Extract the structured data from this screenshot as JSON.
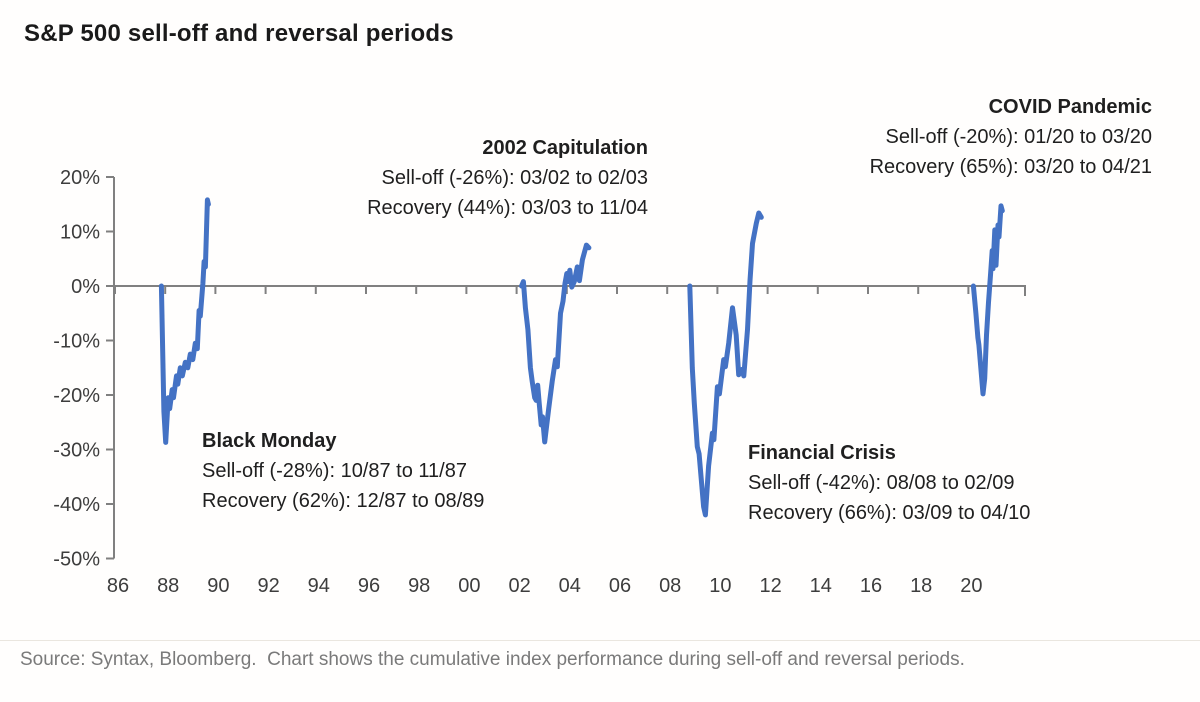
{
  "title": "S&P 500 sell-off and reversal periods",
  "source_note": "Source: Syntax, Bloomberg.  Chart shows the cumulative index performance during sell-off and reversal periods.",
  "colors": {
    "line_blue": "#4472C4",
    "axis_gray": "#808080",
    "text_dark": "#1f1f1f",
    "label_gray": "#3d3d3d",
    "footer_gray": "#7a7a7a"
  },
  "chart_data": {
    "type": "line",
    "title": "S&P 500 sell-off and reversal periods",
    "xlabel": "",
    "ylabel": "",
    "grid": false,
    "legend": "none",
    "ylim": [
      -50,
      20
    ],
    "xlim": [
      1986,
      2022.5
    ],
    "y_ticks": [
      {
        "label": "20%",
        "value": 20
      },
      {
        "label": "10%",
        "value": 10
      },
      {
        "label": "0%",
        "value": 0
      },
      {
        "label": "-10%",
        "value": -10
      },
      {
        "label": "-20%",
        "value": -20
      },
      {
        "label": "-30%",
        "value": -30
      },
      {
        "label": "-40%",
        "value": -40
      },
      {
        "label": "-50%",
        "value": -50
      }
    ],
    "x_ticks": [
      {
        "label": "86",
        "year": 1986
      },
      {
        "label": "88",
        "year": 1988
      },
      {
        "label": "90",
        "year": 1990
      },
      {
        "label": "92",
        "year": 1992
      },
      {
        "label": "94",
        "year": 1994
      },
      {
        "label": "96",
        "year": 1996
      },
      {
        "label": "98",
        "year": 1998
      },
      {
        "label": "00",
        "year": 2000
      },
      {
        "label": "02",
        "year": 2002
      },
      {
        "label": "04",
        "year": 2004
      },
      {
        "label": "06",
        "year": 2006
      },
      {
        "label": "08",
        "year": 2008
      },
      {
        "label": "10",
        "year": 2010
      },
      {
        "label": "12",
        "year": 2012
      },
      {
        "label": "14",
        "year": 2014
      },
      {
        "label": "16",
        "year": 2016
      },
      {
        "label": "18",
        "year": 2018
      },
      {
        "label": "20",
        "year": 2020
      }
    ],
    "episodes": [
      {
        "name": "Black Monday",
        "sell_off": "Sell-off (-28%): 10/87 to 11/87",
        "recovery": "Recovery (62%): 12/87 to 08/89",
        "sell_off_pct": -28,
        "recovery_pct": 62,
        "points": [
          [
            1987.85,
            0
          ],
          [
            1987.9,
            -12
          ],
          [
            1987.95,
            -23
          ],
          [
            1988.02,
            -28.7
          ],
          [
            1988.12,
            -20.5
          ],
          [
            1988.18,
            -22.5
          ],
          [
            1988.28,
            -19
          ],
          [
            1988.33,
            -20.5
          ],
          [
            1988.45,
            -16.5
          ],
          [
            1988.5,
            -18
          ],
          [
            1988.6,
            -15
          ],
          [
            1988.68,
            -16.5
          ],
          [
            1988.8,
            -14
          ],
          [
            1988.9,
            -15
          ],
          [
            1989.0,
            -12.5
          ],
          [
            1989.1,
            -13.5
          ],
          [
            1989.2,
            -10.5
          ],
          [
            1989.28,
            -11.5
          ],
          [
            1989.35,
            -4.5
          ],
          [
            1989.4,
            -5.5
          ],
          [
            1989.5,
            0.5
          ],
          [
            1989.55,
            4.5
          ],
          [
            1989.6,
            3.5
          ],
          [
            1989.68,
            15.8
          ],
          [
            1989.72,
            15.0
          ]
        ]
      },
      {
        "name": "2002 Capitulation",
        "sell_off": "Sell-off (-26%): 03/02 to 02/03",
        "recovery": "Recovery (44%): 03/03 to 11/04",
        "sell_off_pct": -26,
        "recovery_pct": 44,
        "points": [
          [
            2002.2,
            0
          ],
          [
            2002.27,
            0.8
          ],
          [
            2002.35,
            -4
          ],
          [
            2002.45,
            -8
          ],
          [
            2002.55,
            -15
          ],
          [
            2002.62,
            -17.5
          ],
          [
            2002.72,
            -20.5
          ],
          [
            2002.78,
            -21
          ],
          [
            2002.84,
            -18.2
          ],
          [
            2002.9,
            -21.5
          ],
          [
            2002.98,
            -25.5
          ],
          [
            2003.03,
            -24
          ],
          [
            2003.12,
            -28.6
          ],
          [
            2003.28,
            -22.5
          ],
          [
            2003.42,
            -17.5
          ],
          [
            2003.55,
            -13.5
          ],
          [
            2003.62,
            -14.8
          ],
          [
            2003.75,
            -5
          ],
          [
            2003.85,
            -2.8
          ],
          [
            2003.93,
            0.5
          ],
          [
            2004.0,
            2.3
          ],
          [
            2004.05,
            0.8
          ],
          [
            2004.12,
            2.9
          ],
          [
            2004.2,
            -0.2
          ],
          [
            2004.3,
            0.8
          ],
          [
            2004.42,
            3.5
          ],
          [
            2004.5,
            1
          ],
          [
            2004.62,
            4.8
          ],
          [
            2004.78,
            7.5
          ],
          [
            2004.88,
            7.0
          ]
        ]
      },
      {
        "name": "Financial Crisis",
        "sell_off": "Sell-off (-42%): 08/08 to 02/09",
        "recovery": "Recovery (66%): 03/09 to 04/10",
        "sell_off_pct": -42,
        "recovery_pct": 66,
        "points": [
          [
            2008.9,
            0
          ],
          [
            2009.0,
            -15
          ],
          [
            2009.08,
            -21.5
          ],
          [
            2009.2,
            -29.5
          ],
          [
            2009.27,
            -30.8
          ],
          [
            2009.45,
            -40.5
          ],
          [
            2009.52,
            -42
          ],
          [
            2009.65,
            -33
          ],
          [
            2009.8,
            -27
          ],
          [
            2009.86,
            -28.2
          ],
          [
            2010.0,
            -18.5
          ],
          [
            2010.08,
            -19.8
          ],
          [
            2010.25,
            -13.5
          ],
          [
            2010.32,
            -14.8
          ],
          [
            2010.45,
            -10.5
          ],
          [
            2010.6,
            -4
          ],
          [
            2010.75,
            -9
          ],
          [
            2010.85,
            -16.3
          ],
          [
            2010.98,
            -15.3
          ],
          [
            2011.05,
            -16.5
          ],
          [
            2011.2,
            -8
          ],
          [
            2011.3,
            1
          ],
          [
            2011.4,
            7.8
          ],
          [
            2011.55,
            11.5
          ],
          [
            2011.65,
            13.4
          ],
          [
            2011.75,
            12.6
          ]
        ]
      },
      {
        "name": "COVID Pandemic",
        "sell_off": "Sell-off (-20%): 01/20 to 03/20",
        "recovery": "Recovery (65%): 03/20 to 04/21",
        "sell_off_pct": -20,
        "recovery_pct": 65,
        "points": [
          [
            2020.2,
            0
          ],
          [
            2020.3,
            -5
          ],
          [
            2020.38,
            -9.5
          ],
          [
            2020.42,
            -10.8
          ],
          [
            2020.58,
            -19.8
          ],
          [
            2020.65,
            -17
          ],
          [
            2020.72,
            -9
          ],
          [
            2020.8,
            -3
          ],
          [
            2020.88,
            2
          ],
          [
            2020.95,
            6.5
          ],
          [
            2020.98,
            3.2
          ],
          [
            2021.05,
            10.3
          ],
          [
            2021.1,
            3.8
          ],
          [
            2021.18,
            11.2
          ],
          [
            2021.22,
            9
          ],
          [
            2021.3,
            14.7
          ],
          [
            2021.35,
            13.8
          ]
        ]
      }
    ]
  }
}
